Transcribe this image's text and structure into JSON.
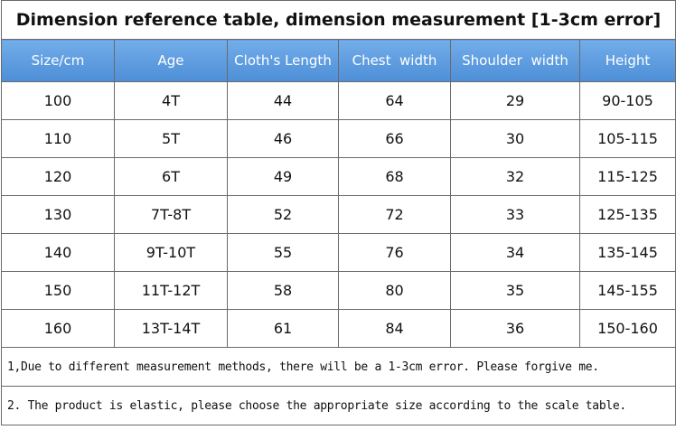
{
  "title": "Dimension reference table, dimension measurement [1-3cm error]",
  "table": {
    "header": [
      "Size/cm",
      "Age",
      "Cloth's Length",
      "Chest  width",
      "Shoulder  width",
      "Height"
    ],
    "rows": [
      [
        "100",
        "4T",
        "44",
        "64",
        "29",
        "90-105"
      ],
      [
        "110",
        "5T",
        "46",
        "66",
        "30",
        "105-115"
      ],
      [
        "120",
        "6T",
        "49",
        "68",
        "32",
        "115-125"
      ],
      [
        "130",
        "7T-8T",
        "52",
        "72",
        "33",
        "125-135"
      ],
      [
        "140",
        "9T-10T",
        "55",
        "76",
        "34",
        "135-145"
      ],
      [
        "150",
        "11T-12T",
        "58",
        "80",
        "35",
        "145-155"
      ],
      [
        "160",
        "13T-14T",
        "61",
        "84",
        "36",
        "150-160"
      ]
    ]
  },
  "notes": [
    "1,Due to different measurement methods, there will be a 1-3cm error. Please forgive me.",
    "2. The product is elastic, please choose the appropriate size according to the scale table."
  ]
}
